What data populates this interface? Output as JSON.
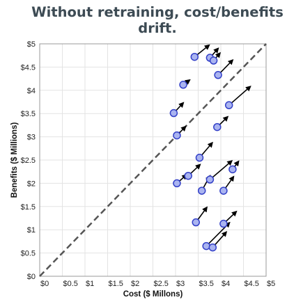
{
  "title_lines": [
    "Without retraining, cost/benefits",
    "drift."
  ],
  "chart_data": {
    "type": "scatter",
    "title": "Without retraining, cost/benefits drift.",
    "xlabel": "Cost ($ Millons)",
    "ylabel": "Benefits ($ Millions)",
    "xlim": [
      0,
      5
    ],
    "ylim": [
      0,
      5
    ],
    "x_ticks": [
      "$0",
      "$0.5",
      "$1",
      "$1.5",
      "$2",
      "$2.5",
      "$3",
      "$3.5",
      "$4",
      "$4.5",
      "$5"
    ],
    "y_ticks": [
      "$0",
      "$0.5",
      "$1",
      "$1.5",
      "$2",
      "$2.5",
      "$3",
      "$3.5",
      "$4",
      "$4.5",
      "$5"
    ],
    "grid": true,
    "reference_line": "y = x (dashed)",
    "colors": {
      "point_fill": "#aab4f0",
      "point_stroke": "#3340c8",
      "arrow": "#000000",
      "reference_line": "#555555"
    },
    "points": [
      {
        "x": 3.42,
        "y": 4.72,
        "dx": 0.32,
        "dy": 0.25
      },
      {
        "x": 3.76,
        "y": 4.7,
        "dx": 0.18,
        "dy": 0.2
      },
      {
        "x": 3.84,
        "y": 4.64,
        "dx": 0.14,
        "dy": 0.16
      },
      {
        "x": 3.94,
        "y": 4.33,
        "dx": 0.32,
        "dy": 0.32
      },
      {
        "x": 3.17,
        "y": 4.12,
        "dx": 0.14,
        "dy": 0.1
      },
      {
        "x": 4.18,
        "y": 3.68,
        "dx": 0.47,
        "dy": 0.4
      },
      {
        "x": 2.96,
        "y": 3.51,
        "dx": 0.21,
        "dy": 0.22
      },
      {
        "x": 3.92,
        "y": 3.21,
        "dx": 0.23,
        "dy": 0.22
      },
      {
        "x": 3.03,
        "y": 3.03,
        "dx": 0.19,
        "dy": 0.19
      },
      {
        "x": 3.53,
        "y": 2.55,
        "dx": 0.28,
        "dy": 0.32
      },
      {
        "x": 4.26,
        "y": 2.3,
        "dx": 0.13,
        "dy": 0.17
      },
      {
        "x": 3.28,
        "y": 2.16,
        "dx": 0.26,
        "dy": 0.24
      },
      {
        "x": 3.76,
        "y": 2.08,
        "dx": 0.48,
        "dy": 0.4
      },
      {
        "x": 3.03,
        "y": 2.0,
        "dx": 0.21,
        "dy": 0.18
      },
      {
        "x": 3.58,
        "y": 1.84,
        "dx": 0.18,
        "dy": 0.32
      },
      {
        "x": 4.06,
        "y": 1.84,
        "dx": 0.22,
        "dy": 0.3
      },
      {
        "x": 3.45,
        "y": 1.16,
        "dx": 0.24,
        "dy": 0.32
      },
      {
        "x": 4.06,
        "y": 1.13,
        "dx": 0.28,
        "dy": 0.26
      },
      {
        "x": 3.68,
        "y": 0.65,
        "dx": 0.51,
        "dy": 0.5
      },
      {
        "x": 3.82,
        "y": 0.62,
        "dx": 0.3,
        "dy": 0.33
      }
    ]
  }
}
